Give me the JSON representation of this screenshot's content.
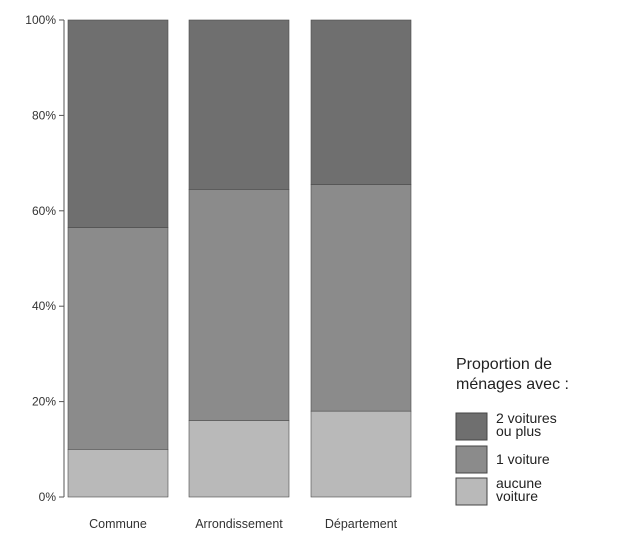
{
  "chart_data": {
    "type": "bar",
    "stacked": true,
    "categories": [
      "Commune",
      "Arrondissement",
      "Département"
    ],
    "series": [
      {
        "name": "aucune voiture",
        "values": [
          10,
          16,
          18
        ],
        "color": "#b9b9b9"
      },
      {
        "name": "1 voiture",
        "values": [
          46.5,
          48.5,
          47.5
        ],
        "color": "#8b8b8b"
      },
      {
        "name": "2 voitures ou plus",
        "values": [
          43.5,
          35.5,
          34.5
        ],
        "color": "#6f6f6f"
      }
    ],
    "yticks": [
      "0%",
      "20%",
      "40%",
      "60%",
      "80%",
      "100%"
    ],
    "ylim": [
      0,
      100
    ],
    "legend": {
      "title_lines": [
        "Proportion de",
        "ménages avec :"
      ],
      "entries": [
        {
          "lines": [
            "2 voitures",
            "ou plus"
          ],
          "color": "#6f6f6f"
        },
        {
          "lines": [
            "1 voiture"
          ],
          "color": "#8b8b8b"
        },
        {
          "lines": [
            "aucune",
            "voiture"
          ],
          "color": "#b9b9b9"
        }
      ],
      "placement": "bottom-right"
    }
  }
}
